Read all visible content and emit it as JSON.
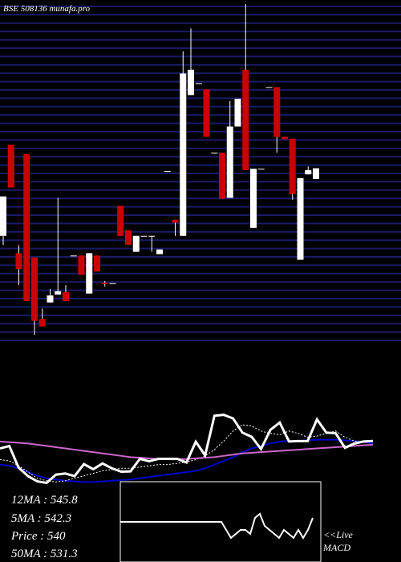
{
  "chart_data": {
    "type": "candlestick",
    "title": "BSE 508136 munafa.pro",
    "ylim": [
      504,
      575
    ],
    "up_color": "#ffffff",
    "down_color": "#cc0000",
    "candles": {
      "open": [
        525.6,
        545.0,
        521.9,
        543.0,
        521.0,
        507.9,
        511.4,
        513.1,
        513.6,
        521.4,
        521.4,
        513.3,
        521.4,
        515.6,
        515.5,
        532.0,
        526.8,
        522.2,
        525.6,
        525.6,
        521.7,
        539.4,
        529.0,
        525.6,
        555.6,
        558.1,
        556.8,
        543.3,
        543.3,
        533.7,
        548.9,
        561.0,
        527.3,
        539.9,
        557.3,
        557.3,
        546.7,
        546.3,
        520.5,
        538.7,
        537.7
      ],
      "high": [
        534.0,
        545.0,
        523.6,
        543.0,
        521.0,
        510.1,
        514.3,
        533.7,
        515.1,
        521.4,
        521.4,
        521.9,
        521.4,
        516.0,
        515.5,
        532.0,
        526.8,
        525.6,
        525.6,
        525.6,
        522.7,
        539.4,
        529.0,
        564.9,
        569.8,
        558.1,
        556.8,
        543.3,
        543.3,
        554.3,
        554.8,
        575.0,
        539.9,
        539.9,
        557.3,
        557.3,
        546.7,
        546.3,
        537.9,
        540.4,
        540
      ],
      "low": [
        523.6,
        535.9,
        515.1,
        511.7,
        504.5,
        506.3,
        511.4,
        513.1,
        511.7,
        521.4,
        517.3,
        513.3,
        518.0,
        514.8,
        515.5,
        525.6,
        523.7,
        522.2,
        525.6,
        522.2,
        521.7,
        539.4,
        525.6,
        525.6,
        555.6,
        558.1,
        546.7,
        543.3,
        533.5,
        533.7,
        548.9,
        539.6,
        527.3,
        539.9,
        557.3,
        543.3,
        546.2,
        533.3,
        520.5,
        538.7,
        537.7
      ],
      "close": [
        534.0,
        535.9,
        518.5,
        511.7,
        507.5,
        506.3,
        512.9,
        513.8,
        511.7,
        521.4,
        517.3,
        521.9,
        518.0,
        515.3,
        515.5,
        525.6,
        523.7,
        525.6,
        525.6,
        525.6,
        522.7,
        539.4,
        528.4,
        560.2,
        561.0,
        558.1,
        546.7,
        543.3,
        533.5,
        548.9,
        554.8,
        539.6,
        539.9,
        539.9,
        557.3,
        546.7,
        546.2,
        534.5,
        537.9,
        539.6,
        540
      ]
    },
    "lower_ylim": [
      504,
      575
    ],
    "price_color": "#ffffff",
    "series": [
      {
        "color": "#0000cc",
        "values": [
          521,
          520,
          518,
          515,
          512,
          510,
          509,
          508,
          507.5,
          507,
          507,
          507.5,
          508,
          508.5,
          509,
          510,
          511,
          512,
          513,
          514,
          515,
          516,
          518,
          521,
          524,
          527,
          531,
          534,
          536,
          538,
          539.5,
          540,
          540,
          540.5,
          541,
          541,
          541,
          540.5,
          540,
          539,
          538
        ]
      },
      {
        "color": "#ffffff",
        "dashed": true,
        "values": [
          525,
          524,
          520,
          515,
          510,
          508,
          507,
          508,
          510,
          512,
          514,
          516,
          517,
          518,
          518,
          519,
          520,
          521,
          521,
          522,
          523,
          525,
          528,
          533,
          540,
          548,
          553,
          552,
          548,
          546,
          545,
          548,
          546,
          543,
          544,
          546,
          548,
          543,
          540,
          539,
          540
        ]
      },
      {
        "color": "#cc66cc",
        "values": [
          539.5,
          539,
          538.5,
          538,
          537,
          536,
          535,
          534,
          533,
          532,
          531,
          530,
          529,
          528,
          527,
          526.5,
          526,
          525.5,
          525.3,
          525.3,
          525.5,
          526,
          526.5,
          527,
          528,
          529,
          530,
          530.5,
          531,
          531.5,
          532,
          532.5,
          533,
          533.5,
          534,
          534.5,
          535,
          535.5,
          536,
          536.5,
          537
        ]
      }
    ],
    "ma_labels": [
      "12MA : 545.8",
      "5MA : 542.3",
      "Price  : 540",
      "50MA : 531.3"
    ],
    "macd": {
      "ylim": [
        -5,
        5
      ],
      "values": [
        0,
        0,
        0,
        0,
        0,
        0,
        0,
        0,
        0,
        0,
        0,
        0,
        0,
        0,
        0,
        0,
        0,
        0,
        0,
        0,
        0,
        0,
        -1,
        -2,
        -1.5,
        -1,
        -1,
        -1.5,
        0.5,
        1,
        -0.5,
        -1,
        -1.5,
        -2,
        -1,
        -1.5,
        -2,
        -1,
        -2,
        -1,
        0.5
      ],
      "label_top": "<<Live",
      "label_bottom": "MACD"
    }
  }
}
